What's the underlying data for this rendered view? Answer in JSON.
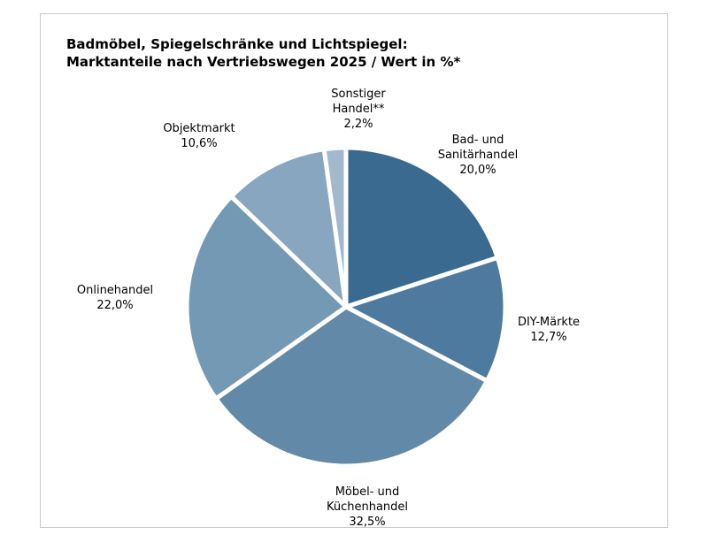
{
  "chart_data": {
    "type": "pie",
    "title_line1": "Badmöbel, Spiegelschränke und Lichtspiegel:",
    "title_line2": "Marktanteile nach Vertriebswegen 2025 / Wert in %*",
    "slices": [
      {
        "label": [
          "Bad- und",
          "Sanitärhandel"
        ],
        "value": 20.0,
        "value_label": "20,0%",
        "color": "#3a6a90"
      },
      {
        "label": [
          "DIY-Märkte"
        ],
        "value": 12.7,
        "value_label": "12,7%",
        "color": "#4d7a9e"
      },
      {
        "label": [
          "Möbel- und",
          "Küchenhandel"
        ],
        "value": 32.5,
        "value_label": "32,5%",
        "color": "#6389a8"
      },
      {
        "label": [
          "Onlinehandel"
        ],
        "value": 22.0,
        "value_label": "22,0%",
        "color": "#7499b5"
      },
      {
        "label": [
          "Objektmarkt"
        ],
        "value": 10.6,
        "value_label": "10,6%",
        "color": "#88a6bf"
      },
      {
        "label": [
          "Sonstiger",
          "Handel**"
        ],
        "value": 2.2,
        "value_label": "2,2%",
        "color": "#a2b8cc"
      }
    ]
  }
}
